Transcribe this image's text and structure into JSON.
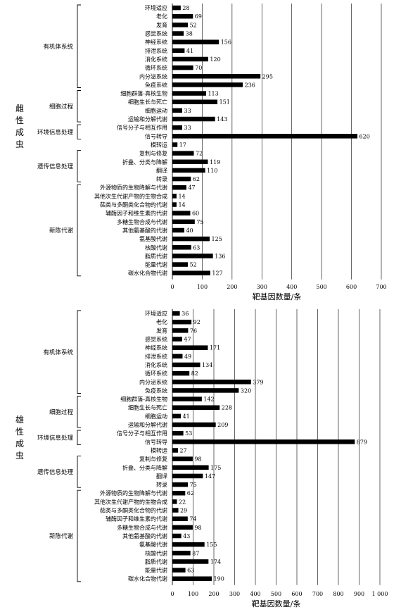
{
  "chart_data": [
    {
      "type": "bar",
      "orientation": "horizontal",
      "panel_label": "雌性成虫",
      "xlabel": "靶基因数量/条",
      "xlim": [
        0,
        700
      ],
      "xticks": [
        0,
        100,
        200,
        300,
        400,
        500,
        600,
        700
      ],
      "x_tick_labels": [
        "0",
        "100",
        "200",
        "300",
        "400",
        "500",
        "600",
        "700"
      ],
      "grid": "vertical",
      "categories": [
        "环境适应",
        "老化",
        "发育",
        "感觉系统",
        "神经系统",
        "排泄系统",
        "消化系统",
        "循环系统",
        "内分泌系统",
        "免疫系统",
        "细胞群落-真核生物",
        "细胞生长与死亡",
        "细胞运动",
        "运输和分解代谢",
        "信号分子与相互作用",
        "信号转导",
        "模转运",
        "复制与修复",
        "折叠、分类与降解",
        "翻译",
        "转录",
        "外源物质的生物降解与代谢",
        "其他次生代谢产物的生物合成",
        "萜类与多酮类化合物的代谢",
        "辅酶因子和维生素的代谢",
        "多糖生物合成与代谢",
        "其他氨基酸的代谢",
        "氨基酸代谢",
        "核酸代谢",
        "脂质代谢",
        "能量代谢",
        "碳水化合物代谢"
      ],
      "values": [
        28,
        69,
        52,
        38,
        156,
        41,
        120,
        70,
        295,
        236,
        113,
        151,
        33,
        143,
        33,
        620,
        17,
        72,
        119,
        110,
        62,
        47,
        14,
        14,
        60,
        75,
        40,
        125,
        63,
        136,
        52,
        127
      ],
      "groups": [
        {
          "name": "有机体系统",
          "start": 0,
          "end": 9
        },
        {
          "name": "细胞过程",
          "start": 10,
          "end": 13
        },
        {
          "name": "环境信息处理",
          "start": 14,
          "end": 15
        },
        {
          "name": "遗传信息处理",
          "start": 17,
          "end": 20
        },
        {
          "name": "新陈代谢",
          "start": 21,
          "end": 31
        }
      ]
    },
    {
      "type": "bar",
      "orientation": "horizontal",
      "panel_label": "雄性成虫",
      "xlabel": "靶基因数量/条",
      "xlim": [
        0,
        1000
      ],
      "xticks": [
        0,
        100,
        200,
        300,
        400,
        500,
        600,
        700,
        800,
        900,
        1000
      ],
      "x_tick_labels": [
        "0",
        "100",
        "200",
        "300",
        "400",
        "500",
        "600",
        "700",
        "800",
        "900",
        "1 000"
      ],
      "grid": "vertical",
      "categories": [
        "环境适应",
        "老化",
        "发育",
        "感觉系统",
        "神经系统",
        "排泄系统",
        "消化系统",
        "循环系统",
        "内分泌系统",
        "免疫系统",
        "细胞群落-真核生物",
        "细胞生长与死亡",
        "细胞运动",
        "运输和分解代谢",
        "信号分子与相互作用",
        "信号转导",
        "模转运",
        "复制与修复",
        "折叠、分类与降解",
        "翻译",
        "转录",
        "外源物质的生物降解与代谢",
        "其他次生代谢产物的生物合成",
        "萜类与多酮类化合物的代谢",
        "辅酶因子和维生素的代谢",
        "多糖生物合成与代谢",
        "其他氨基酸的代谢",
        "氨基酸代谢",
        "核酸代谢",
        "脂质代谢",
        "能量代谢",
        "碳水化合物代谢"
      ],
      "values": [
        36,
        92,
        76,
        47,
        171,
        49,
        134,
        82,
        379,
        320,
        142,
        228,
        41,
        209,
        53,
        879,
        27,
        98,
        175,
        147,
        75,
        62,
        22,
        29,
        74,
        98,
        43,
        155,
        87,
        174,
        63,
        190
      ],
      "groups": [
        {
          "name": "有机体系统",
          "start": 0,
          "end": 9
        },
        {
          "name": "细胞过程",
          "start": 10,
          "end": 13
        },
        {
          "name": "环境信息处理",
          "start": 14,
          "end": 15
        },
        {
          "name": "遗传信息处理",
          "start": 17,
          "end": 20
        },
        {
          "name": "新陈代谢",
          "start": 21,
          "end": 31
        }
      ]
    }
  ]
}
